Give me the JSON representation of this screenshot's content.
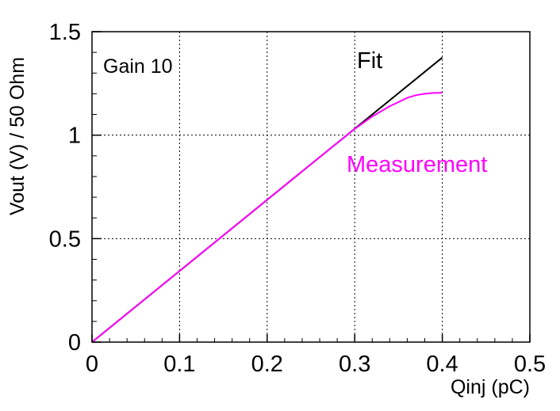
{
  "chart_data": {
    "type": "line",
    "title": "",
    "xlabel": "Qinj (pC)",
    "ylabel": "Vout (V) / 50 Ohm",
    "xlim": [
      0,
      0.5
    ],
    "ylim": [
      0,
      1.5
    ],
    "x_ticks": [
      0,
      0.1,
      0.2,
      0.3,
      0.4,
      0.5
    ],
    "x_tick_labels": [
      "0",
      "0.1",
      "0.2",
      "0.3",
      "0.4",
      "0.5"
    ],
    "y_ticks": [
      0,
      0.5,
      1,
      1.5
    ],
    "y_tick_labels": [
      "0",
      "0.5",
      "1",
      "1.5"
    ],
    "grid": true,
    "series": [
      {
        "name": "Fit",
        "color": "#000000",
        "x": [
          0,
          0.4
        ],
        "y": [
          0,
          1.375
        ]
      },
      {
        "name": "Measurement",
        "color": "#ff00ff",
        "x": [
          0,
          0.05,
          0.1,
          0.15,
          0.2,
          0.25,
          0.3,
          0.31,
          0.32,
          0.33,
          0.34,
          0.35,
          0.36,
          0.37,
          0.38,
          0.39,
          0.4
        ],
        "y": [
          0,
          0.172,
          0.344,
          0.516,
          0.688,
          0.86,
          1.03,
          1.06,
          1.09,
          1.115,
          1.14,
          1.16,
          1.18,
          1.193,
          1.2,
          1.204,
          1.205
        ]
      }
    ],
    "annotations": [
      {
        "text": "Gain 10",
        "color": "#000000"
      },
      {
        "text": "Fit",
        "color": "#000000"
      },
      {
        "text": "Measurement",
        "color": "#ff00ff"
      }
    ]
  }
}
